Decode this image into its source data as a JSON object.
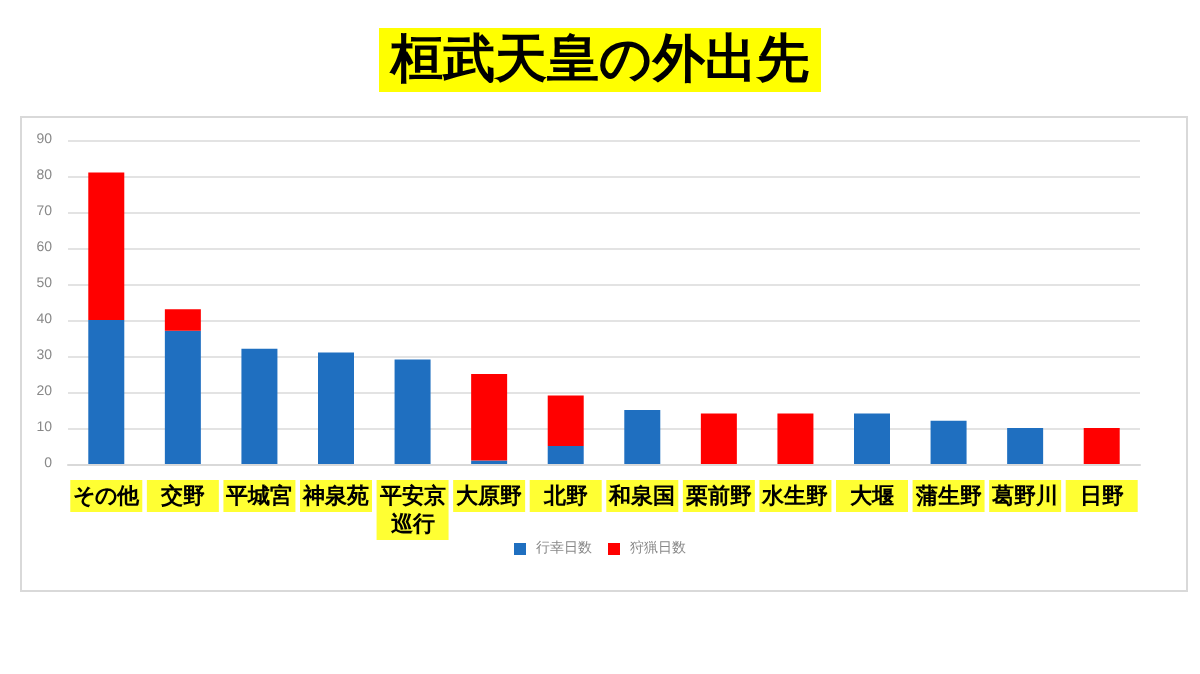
{
  "chart_data": {
    "type": "bar",
    "title": "桓武天皇の外出先",
    "categories": [
      "その他",
      "交野",
      "平城宮",
      "神泉苑",
      "平安京巡行",
      "大原野",
      "北野",
      "和泉国",
      "栗前野",
      "水生野",
      "大堰",
      "蒲生野",
      "葛野川",
      "日野"
    ],
    "series": [
      {
        "name": "行幸日数",
        "color": "#1f6fc0",
        "values": [
          40,
          37,
          32,
          31,
          29,
          1,
          5,
          15,
          null,
          null,
          14,
          12,
          10,
          null
        ]
      },
      {
        "name": "狩猟日数",
        "color": "#ff0000",
        "values": [
          41,
          6,
          null,
          null,
          null,
          24,
          14,
          null,
          14,
          14,
          null,
          null,
          null,
          10
        ]
      }
    ],
    "stacked": true,
    "ylim": [
      0,
      90
    ],
    "yticks": [
      0,
      10,
      20,
      30,
      40,
      50,
      60,
      70,
      80,
      90
    ],
    "grid": "y",
    "legend": "bottom"
  }
}
